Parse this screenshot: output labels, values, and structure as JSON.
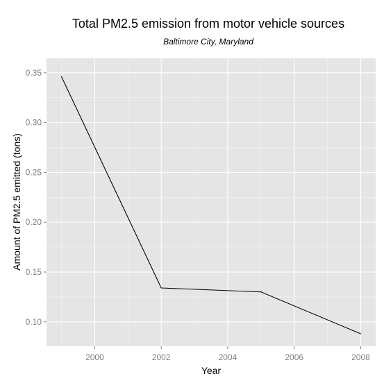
{
  "chart_data": {
    "type": "line",
    "title": "Total PM2.5 emission from motor vehicle sources",
    "subtitle": "Baltimore City, Maryland",
    "xlabel": "Year",
    "ylabel": "Amount of PM2.5 emitted (tons)",
    "x": [
      1999,
      2002,
      2005,
      2008
    ],
    "series": [
      {
        "values": [
          0.346,
          0.134,
          0.13,
          0.088
        ]
      }
    ],
    "xlim": [
      1998.55,
      2008.45
    ],
    "ylim": [
      0.0755,
      0.3645
    ],
    "xticks": [
      2000,
      2002,
      2004,
      2006,
      2008
    ],
    "xtick_labels": [
      "2000",
      "2002",
      "2004",
      "2006",
      "2008"
    ],
    "yticks": [
      0.1,
      0.15,
      0.2,
      0.25,
      0.3,
      0.35
    ],
    "ytick_labels": [
      "0.10",
      "0.15",
      "0.20",
      "0.25",
      "0.30",
      "0.35"
    ],
    "grid": true,
    "panel_background": "#e5e5e5",
    "grid_color": "#ffffff",
    "line_color": "#000000"
  }
}
